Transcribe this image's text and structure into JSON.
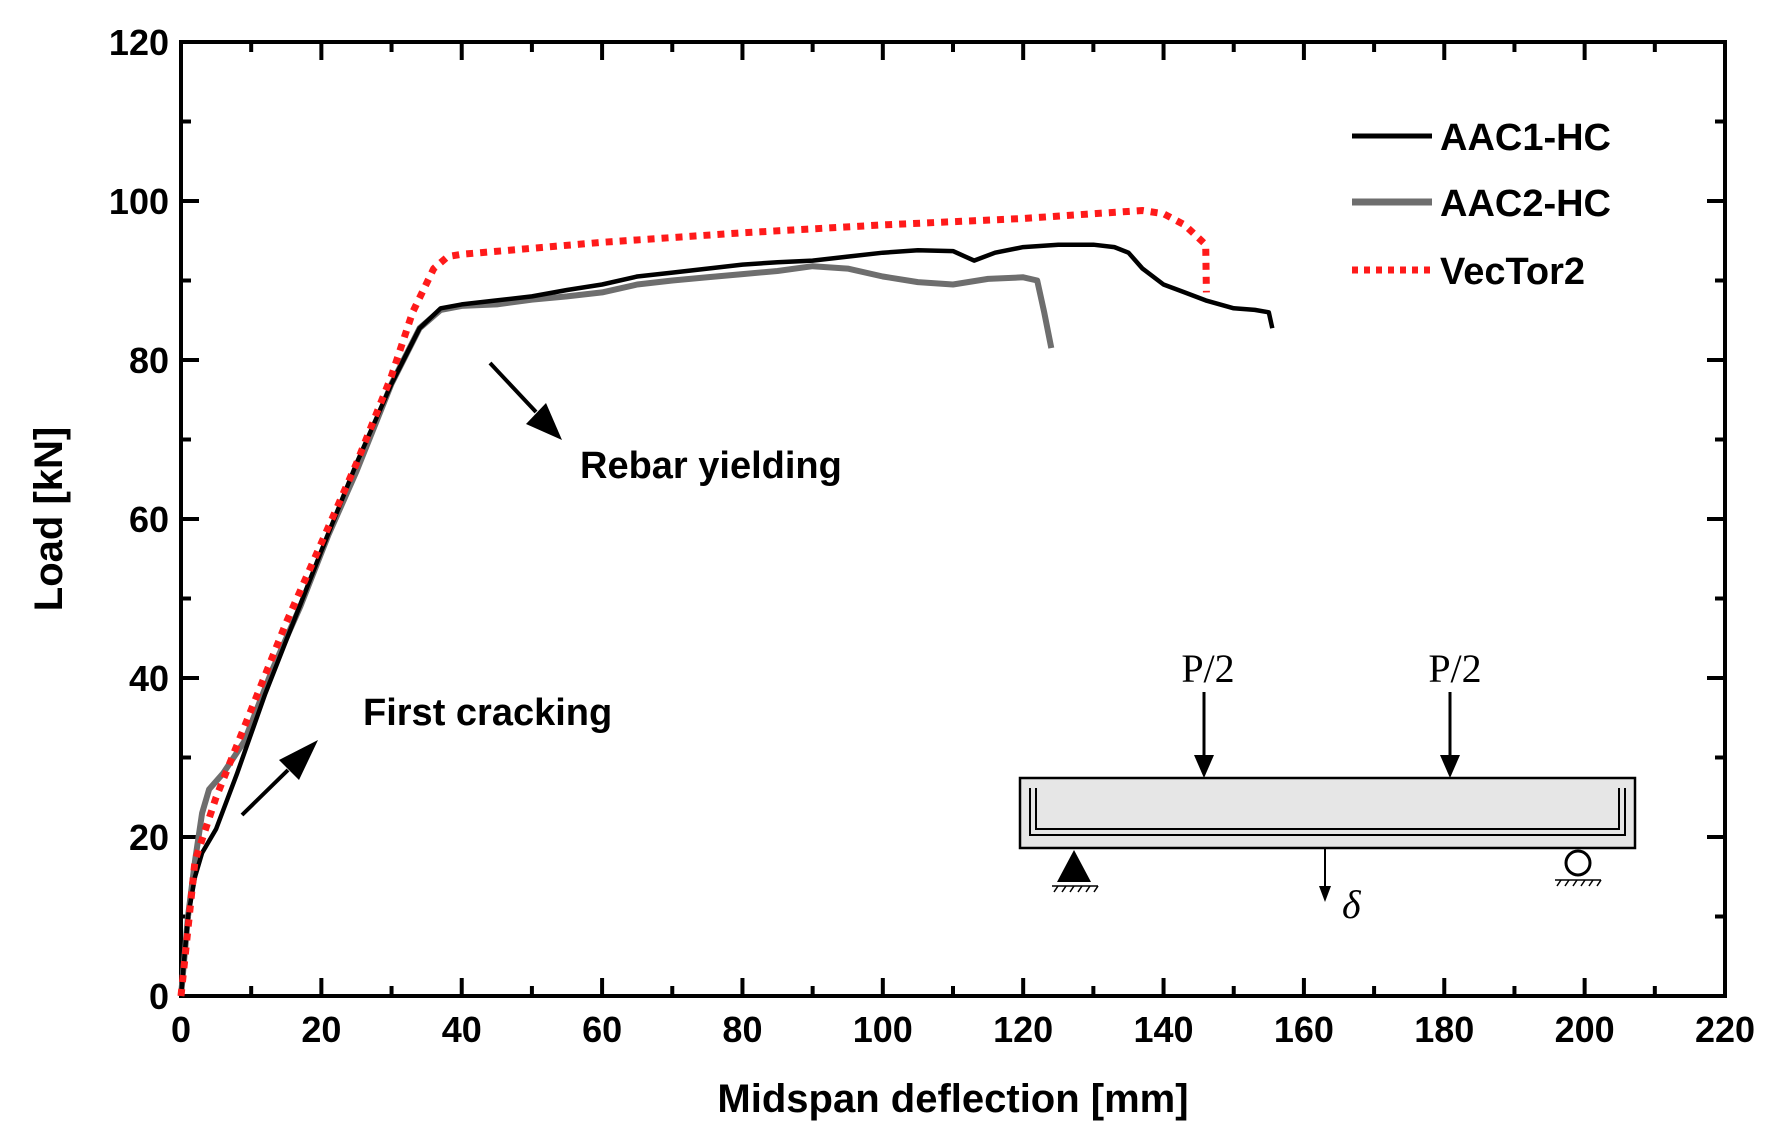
{
  "chart_data": {
    "type": "line",
    "title": "",
    "xlabel": "Midspan deflection [mm]",
    "ylabel": "Load [kN]",
    "xlim": [
      0,
      220
    ],
    "ylim": [
      0,
      120
    ],
    "x_ticks": [
      0,
      20,
      40,
      60,
      80,
      100,
      120,
      140,
      160,
      180,
      200,
      220
    ],
    "y_ticks": [
      0,
      20,
      40,
      60,
      80,
      100,
      120
    ],
    "legend_position": "top-right",
    "series": [
      {
        "name": "AAC1-HC",
        "color": "#000000",
        "style": "solid",
        "x": [
          0,
          1,
          2,
          3,
          5,
          8,
          12,
          16,
          20,
          25,
          30,
          34,
          37,
          40,
          45,
          50,
          55,
          60,
          65,
          70,
          75,
          80,
          85,
          90,
          95,
          100,
          105,
          110,
          113,
          116,
          120,
          125,
          130,
          133,
          135,
          137,
          140,
          143,
          146,
          150,
          153,
          155,
          155.5
        ],
        "y": [
          0,
          10,
          15,
          18,
          21,
          28,
          38,
          47,
          56,
          67,
          77,
          84,
          86.5,
          87,
          87.5,
          88,
          88.8,
          89.5,
          90.5,
          91,
          91.5,
          92,
          92.3,
          92.5,
          93,
          93.5,
          93.8,
          93.7,
          92.5,
          93.5,
          94.2,
          94.5,
          94.5,
          94.2,
          93.5,
          91.5,
          89.5,
          88.5,
          87.5,
          86.5,
          86.3,
          86,
          84
        ]
      },
      {
        "name": "AAC2-HC",
        "color": "#6e6e6e",
        "style": "solid",
        "x": [
          0,
          1,
          2,
          3,
          4,
          6,
          9,
          13,
          17,
          21,
          25,
          30,
          34,
          37,
          40,
          45,
          50,
          55,
          60,
          65,
          70,
          75,
          80,
          85,
          90,
          95,
          100,
          105,
          110,
          115,
          120,
          122,
          123,
          124
        ],
        "y": [
          0,
          10,
          17,
          23,
          26,
          28,
          32,
          41,
          49,
          58,
          66,
          77,
          84,
          86.3,
          86.8,
          87,
          87.6,
          88,
          88.5,
          89.5,
          90,
          90.4,
          90.8,
          91.2,
          91.8,
          91.5,
          90.5,
          89.8,
          89.5,
          90.2,
          90.4,
          90,
          86,
          81.5
        ]
      },
      {
        "name": "VecTor2",
        "color": "#ff1a1a",
        "style": "dotted",
        "x": [
          0,
          2,
          5,
          10,
          15,
          20,
          25,
          30,
          33,
          36,
          38,
          40,
          60,
          80,
          100,
          120,
          130,
          137,
          140,
          143,
          146,
          146.1
        ],
        "y": [
          0,
          17,
          25,
          36,
          47,
          57,
          67,
          78,
          86,
          91.5,
          93,
          93.3,
          94.8,
          96,
          97,
          97.8,
          98.4,
          98.8,
          98.4,
          97,
          94.5,
          88.5
        ]
      }
    ],
    "annotations": [
      {
        "id": "rebar",
        "text": "Rebar yielding"
      },
      {
        "id": "crack",
        "text": "First cracking"
      }
    ],
    "inset": {
      "load_left": "P/2",
      "load_right": "P/2",
      "deflection_symbol": "δ"
    }
  }
}
